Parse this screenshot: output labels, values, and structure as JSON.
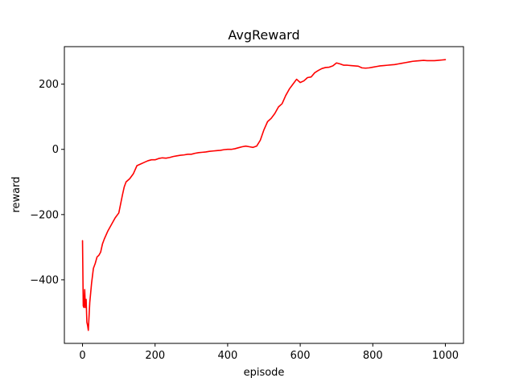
{
  "chart_data": {
    "type": "line",
    "title": "AvgReward",
    "xlabel": "episode",
    "ylabel": "reward",
    "xlim": [
      -50,
      1050
    ],
    "ylim": [
      -595,
      315
    ],
    "xticks": [
      0,
      200,
      400,
      600,
      800,
      1000
    ],
    "yticks": [
      -400,
      -200,
      0,
      200
    ],
    "ytick_labels": [
      "−400",
      "−200",
      "0",
      "200"
    ],
    "grid": false,
    "series": [
      {
        "color": "#ff0000",
        "x": [
          0,
          2,
          4,
          6,
          8,
          10,
          12,
          14,
          16,
          20,
          25,
          30,
          35,
          40,
          45,
          50,
          55,
          60,
          70,
          80,
          90,
          100,
          110,
          115,
          120,
          130,
          140,
          150,
          160,
          170,
          180,
          190,
          200,
          210,
          220,
          230,
          240,
          250,
          260,
          270,
          280,
          290,
          300,
          310,
          320,
          330,
          340,
          350,
          360,
          370,
          380,
          390,
          400,
          410,
          420,
          430,
          440,
          450,
          460,
          470,
          480,
          490,
          500,
          510,
          520,
          530,
          540,
          550,
          560,
          570,
          580,
          590,
          600,
          610,
          620,
          630,
          640,
          650,
          660,
          670,
          680,
          690,
          700,
          710,
          720,
          730,
          740,
          750,
          760,
          770,
          780,
          790,
          800,
          810,
          820,
          830,
          840,
          850,
          860,
          870,
          880,
          890,
          900,
          910,
          920,
          930,
          940,
          950,
          960,
          970,
          980,
          990,
          1000
        ],
        "y": [
          -280,
          -480,
          -485,
          -430,
          -485,
          -460,
          -530,
          -540,
          -555,
          -470,
          -410,
          -365,
          -350,
          -330,
          -325,
          -315,
          -290,
          -275,
          -250,
          -230,
          -210,
          -195,
          -140,
          -115,
          -100,
          -90,
          -75,
          -50,
          -45,
          -40,
          -35,
          -32,
          -32,
          -28,
          -26,
          -27,
          -25,
          -22,
          -20,
          -18,
          -17,
          -15,
          -15,
          -12,
          -10,
          -9,
          -8,
          -6,
          -5,
          -4,
          -3,
          -1,
          0,
          0,
          2,
          5,
          8,
          10,
          8,
          6,
          10,
          28,
          60,
          85,
          95,
          110,
          130,
          140,
          165,
          185,
          200,
          215,
          205,
          210,
          220,
          222,
          235,
          242,
          248,
          251,
          252,
          256,
          265,
          262,
          258,
          258,
          257,
          256,
          255,
          250,
          249,
          250,
          252,
          254,
          256,
          257,
          258,
          259,
          260,
          262,
          264,
          266,
          268,
          270,
          271,
          272,
          273,
          272,
          272,
          272,
          273,
          274,
          275
        ]
      }
    ]
  }
}
